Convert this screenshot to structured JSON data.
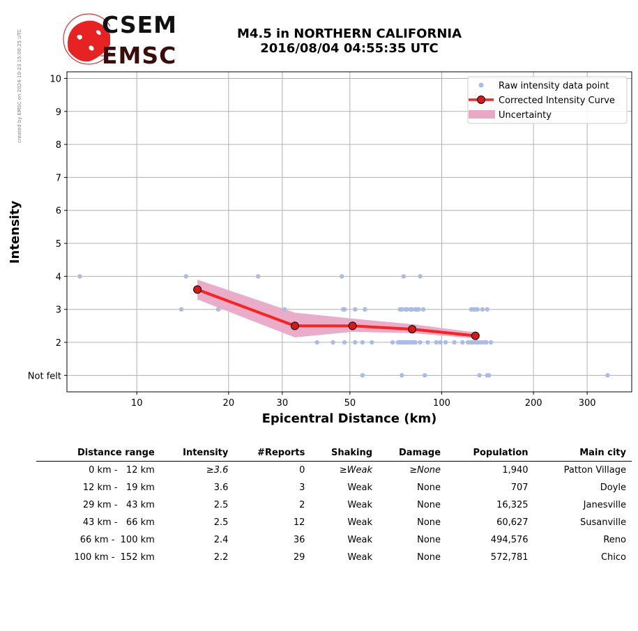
{
  "side_note": "created by EMSC on 2024-10-23 15:00:25 UTC",
  "logo": {
    "top_text": "CSEM",
    "bottom_text": "EMSC"
  },
  "title": {
    "line1": "M4.5 in NORTHERN CALIFORNIA",
    "line2": "2016/08/04 04:55:35 UTC"
  },
  "chart_data": {
    "type": "scatter",
    "xlabel": "Epicentral Distance (km)",
    "ylabel": "Intensity",
    "xscale": "log",
    "xlim": [
      5.9,
      420
    ],
    "ylim": [
      0.5,
      10.2
    ],
    "x_ticks": [
      10,
      20,
      30,
      50,
      100,
      200,
      300
    ],
    "y_ticks": [
      {
        "value": 1,
        "label": "Not felt"
      },
      {
        "value": 2,
        "label": "2"
      },
      {
        "value": 3,
        "label": "3"
      },
      {
        "value": 4,
        "label": "4"
      },
      {
        "value": 5,
        "label": "5"
      },
      {
        "value": 6,
        "label": "6"
      },
      {
        "value": 7,
        "label": "7"
      },
      {
        "value": 8,
        "label": "8"
      },
      {
        "value": 9,
        "label": "9"
      },
      {
        "value": 10,
        "label": "10"
      }
    ],
    "grid": true,
    "legend_position": "top-right",
    "legend": [
      "Raw intensity data point",
      "Corrected Intensity Curve",
      "Uncertainty"
    ],
    "colors": {
      "raw": "#aabbe8",
      "curve": "#ff2020",
      "curve_marker": "#d91818",
      "uncertainty": "#e8a8c6",
      "grid": "#b0b0b0"
    },
    "raw_points": [
      [
        6.5,
        4
      ],
      [
        14.5,
        4
      ],
      [
        25,
        4
      ],
      [
        47,
        4
      ],
      [
        75,
        4
      ],
      [
        85,
        4
      ],
      [
        14,
        3
      ],
      [
        18.5,
        3
      ],
      [
        30.5,
        3
      ],
      [
        47.5,
        3
      ],
      [
        48,
        3
      ],
      [
        52,
        3
      ],
      [
        56,
        3
      ],
      [
        73,
        3
      ],
      [
        74,
        3
      ],
      [
        76,
        3
      ],
      [
        77,
        3
      ],
      [
        79,
        3
      ],
      [
        80,
        3
      ],
      [
        82,
        3
      ],
      [
        83,
        3
      ],
      [
        84,
        3
      ],
      [
        87,
        3
      ],
      [
        125,
        3
      ],
      [
        127,
        3
      ],
      [
        129,
        3
      ],
      [
        131,
        3
      ],
      [
        136,
        3
      ],
      [
        141,
        3
      ],
      [
        39,
        2
      ],
      [
        44,
        2
      ],
      [
        48,
        2
      ],
      [
        52,
        2
      ],
      [
        55,
        2
      ],
      [
        59,
        2
      ],
      [
        69,
        2
      ],
      [
        72,
        2
      ],
      [
        73,
        2
      ],
      [
        74,
        2
      ],
      [
        75,
        2
      ],
      [
        76,
        2
      ],
      [
        77,
        2
      ],
      [
        78,
        2
      ],
      [
        79,
        2
      ],
      [
        80,
        2
      ],
      [
        81,
        2
      ],
      [
        82,
        2
      ],
      [
        85,
        2
      ],
      [
        90,
        2
      ],
      [
        96,
        2
      ],
      [
        99,
        2
      ],
      [
        103,
        2
      ],
      [
        110,
        2
      ],
      [
        117,
        2
      ],
      [
        122,
        2
      ],
      [
        125,
        2
      ],
      [
        127,
        2
      ],
      [
        130,
        2
      ],
      [
        132,
        2
      ],
      [
        135,
        2
      ],
      [
        138,
        2
      ],
      [
        140,
        2
      ],
      [
        145,
        2
      ],
      [
        55,
        1
      ],
      [
        74,
        1
      ],
      [
        88,
        1
      ],
      [
        133,
        1
      ],
      [
        141,
        1
      ],
      [
        143,
        1
      ],
      [
        350,
        1
      ]
    ],
    "curve": {
      "x": [
        15.8,
        33,
        51,
        80,
        129
      ],
      "y": [
        3.6,
        2.5,
        2.5,
        2.4,
        2.2
      ]
    },
    "uncertainty": {
      "x": [
        15.8,
        33,
        51,
        80,
        129
      ],
      "lower": [
        3.3,
        2.15,
        2.32,
        2.28,
        2.12
      ],
      "upper": [
        3.9,
        2.9,
        2.72,
        2.55,
        2.3
      ]
    }
  },
  "table": {
    "headers": [
      "Distance range",
      "Intensity",
      "#Reports",
      "Shaking",
      "Damage",
      "Population",
      "Main city"
    ],
    "rows": [
      [
        "0 km -   12 km",
        "≥3.6",
        "0",
        "≥Weak",
        "≥None",
        "1,940",
        "Patton Village"
      ],
      [
        "12 km -   19 km",
        "3.6",
        "3",
        "Weak",
        "None",
        "707",
        "Doyle"
      ],
      [
        "29 km -   43 km",
        "2.5",
        "2",
        "Weak",
        "None",
        "16,325",
        "Janesville"
      ],
      [
        "43 km -   66 km",
        "2.5",
        "12",
        "Weak",
        "None",
        "60,627",
        "Susanville"
      ],
      [
        "66 km -  100 km",
        "2.4",
        "36",
        "Weak",
        "None",
        "494,576",
        "Reno"
      ],
      [
        "100 km -  152 km",
        "2.2",
        "29",
        "Weak",
        "None",
        "572,781",
        "Chico"
      ]
    ]
  }
}
